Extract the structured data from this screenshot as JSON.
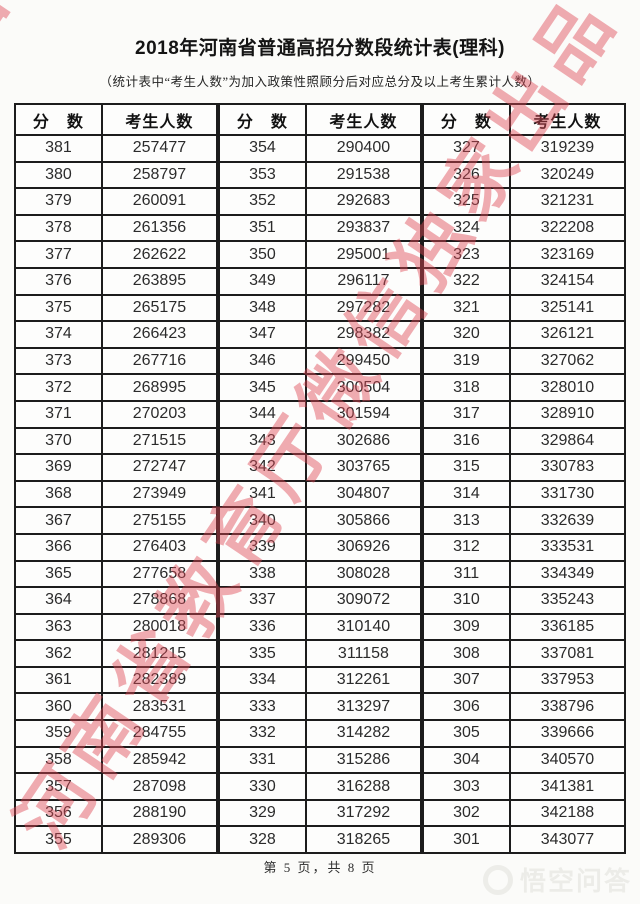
{
  "page": {
    "title": "2018年河南省普通高招分数段统计表(理科)",
    "subtitle": "（统计表中“考生人数”为加入政策性照顾分后对应总分及以上考生累计人数）"
  },
  "table_headers": {
    "score": "分　数",
    "count": "考生人数"
  },
  "tables": [
    {
      "rows": [
        [
          381,
          257477
        ],
        [
          380,
          258797
        ],
        [
          379,
          260091
        ],
        [
          378,
          261356
        ],
        [
          377,
          262622
        ],
        [
          376,
          263895
        ],
        [
          375,
          265175
        ],
        [
          374,
          266423
        ],
        [
          373,
          267716
        ],
        [
          372,
          268995
        ],
        [
          371,
          270203
        ],
        [
          370,
          271515
        ],
        [
          369,
          272747
        ],
        [
          368,
          273949
        ],
        [
          367,
          275155
        ],
        [
          366,
          276403
        ],
        [
          365,
          277658
        ],
        [
          364,
          278868
        ],
        [
          363,
          280018
        ],
        [
          362,
          281215
        ],
        [
          361,
          282389
        ],
        [
          360,
          283531
        ],
        [
          359,
          284755
        ],
        [
          358,
          285942
        ],
        [
          357,
          287098
        ],
        [
          356,
          288190
        ],
        [
          355,
          289306
        ]
      ]
    },
    {
      "rows": [
        [
          354,
          290400
        ],
        [
          353,
          291538
        ],
        [
          352,
          292683
        ],
        [
          351,
          293837
        ],
        [
          350,
          295001
        ],
        [
          349,
          296117
        ],
        [
          348,
          297282
        ],
        [
          347,
          298382
        ],
        [
          346,
          299450
        ],
        [
          345,
          300504
        ],
        [
          344,
          301594
        ],
        [
          343,
          302686
        ],
        [
          342,
          303765
        ],
        [
          341,
          304807
        ],
        [
          340,
          305866
        ],
        [
          339,
          306926
        ],
        [
          338,
          308028
        ],
        [
          337,
          309072
        ],
        [
          336,
          310140
        ],
        [
          335,
          311158
        ],
        [
          334,
          312261
        ],
        [
          333,
          313297
        ],
        [
          332,
          314282
        ],
        [
          331,
          315286
        ],
        [
          330,
          316288
        ],
        [
          329,
          317292
        ],
        [
          328,
          318265
        ]
      ]
    },
    {
      "rows": [
        [
          327,
          319239
        ],
        [
          326,
          320249
        ],
        [
          325,
          321231
        ],
        [
          324,
          322208
        ],
        [
          323,
          323169
        ],
        [
          322,
          324154
        ],
        [
          321,
          325141
        ],
        [
          320,
          326121
        ],
        [
          319,
          327062
        ],
        [
          318,
          328010
        ],
        [
          317,
          328910
        ],
        [
          316,
          329864
        ],
        [
          315,
          330783
        ],
        [
          314,
          331730
        ],
        [
          313,
          332639
        ],
        [
          312,
          333531
        ],
        [
          311,
          334349
        ],
        [
          310,
          335243
        ],
        [
          309,
          336185
        ],
        [
          308,
          337081
        ],
        [
          307,
          337953
        ],
        [
          306,
          338796
        ],
        [
          305,
          339666
        ],
        [
          304,
          340570
        ],
        [
          303,
          341381
        ],
        [
          302,
          342188
        ],
        [
          301,
          343077
        ]
      ]
    }
  ],
  "watermark": {
    "text": "河南省教育厅微信独家出品",
    "color": "#de4855"
  },
  "footer": {
    "page_text": "第 5 页，共 8 页"
  },
  "logo": {
    "text": "悟空问答"
  }
}
